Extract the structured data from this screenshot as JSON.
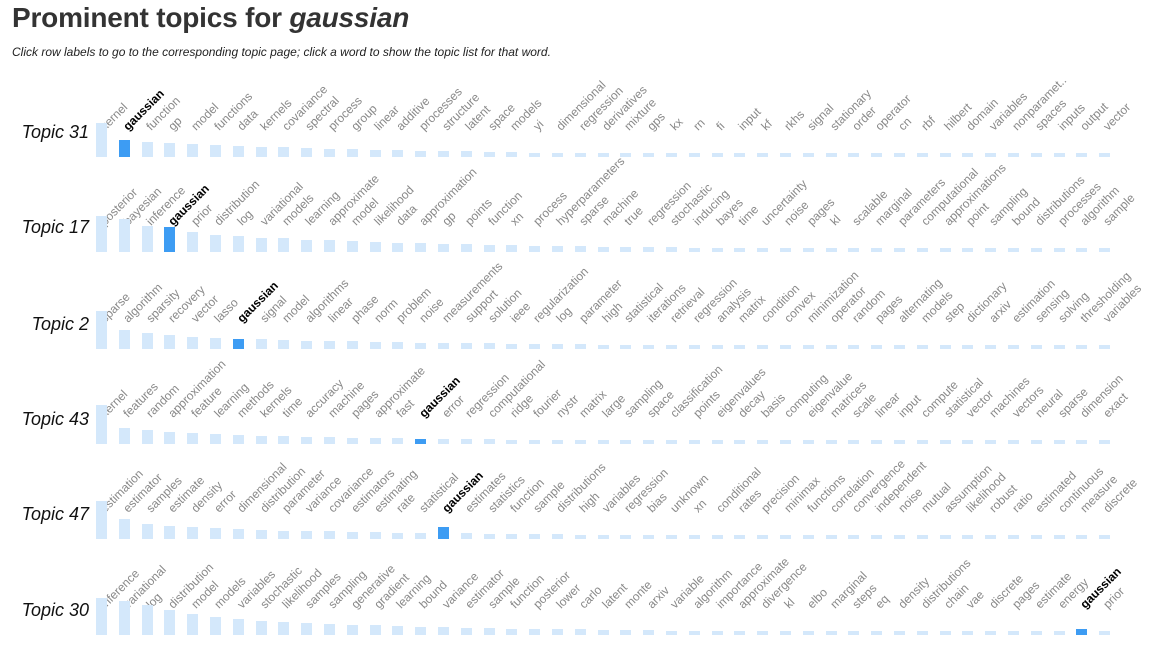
{
  "header": {
    "title_prefix": "Prominent topics for ",
    "query": "gaussian",
    "instructions": "Click row labels to go to the corresponding topic page; click a word to show the topic list for that word."
  },
  "colors": {
    "bar": "#d4e8fb",
    "highlight_bar": "#3d9cf3",
    "word": "#888888",
    "highlight_word": "#000000"
  },
  "highlight_word": "gaussian",
  "topics": [
    {
      "label": "Topic 31",
      "words": [
        "kernel",
        "gaussian",
        "function",
        "gp",
        "model",
        "functions",
        "data",
        "kernels",
        "covariance",
        "spectral",
        "process",
        "group",
        "linear",
        "additive",
        "processes",
        "structure",
        "latent",
        "space",
        "models",
        "yi",
        "dimensional",
        "regression",
        "derivatives",
        "mixture",
        "gps",
        "kx",
        "rn",
        "fi",
        "input",
        "kf",
        "rkhs",
        "signal",
        "stationary",
        "order",
        "operator",
        "cn",
        "rbf",
        "hilbert",
        "domain",
        "variables",
        "nonparamet..",
        "spaces",
        "inputs",
        "output",
        "vector"
      ],
      "levels": [
        0.85,
        0.42,
        0.38,
        0.35,
        0.33,
        0.3,
        0.28,
        0.26,
        0.24,
        0.22,
        0.2,
        0.19,
        0.18,
        0.17,
        0.16,
        0.15,
        0.14,
        0.13,
        0.12,
        0.11,
        0.11,
        0.1,
        0.1,
        0.09,
        0.09,
        0.08,
        0.08,
        0.08,
        0.07,
        0.07,
        0.07,
        0.07,
        0.06,
        0.06,
        0.06,
        0.06,
        0.06,
        0.06,
        0.05,
        0.05,
        0.05,
        0.05,
        0.05,
        0.05,
        0.05
      ]
    },
    {
      "label": "Topic 17",
      "words": [
        "posterior",
        "bayesian",
        "inference",
        "gaussian",
        "prior",
        "distribution",
        "log",
        "variational",
        "models",
        "learning",
        "approximate",
        "model",
        "likelihood",
        "data",
        "approximation",
        "gp",
        "points",
        "function",
        "xn",
        "process",
        "hyperparameters",
        "sparse",
        "machine",
        "true",
        "regression",
        "stochastic",
        "inducing",
        "bayes",
        "time",
        "uncertainty",
        "noise",
        "pages",
        "kl",
        "scalable",
        "marginal",
        "parameters",
        "computational",
        "approximations",
        "point",
        "sampling",
        "bound",
        "distributions",
        "processes",
        "algorithm",
        "sample"
      ],
      "levels": [
        0.9,
        0.82,
        0.65,
        0.62,
        0.5,
        0.42,
        0.4,
        0.36,
        0.34,
        0.31,
        0.29,
        0.27,
        0.25,
        0.23,
        0.22,
        0.2,
        0.19,
        0.18,
        0.17,
        0.16,
        0.15,
        0.14,
        0.13,
        0.13,
        0.12,
        0.12,
        0.11,
        0.11,
        0.1,
        0.1,
        0.09,
        0.09,
        0.09,
        0.08,
        0.08,
        0.08,
        0.08,
        0.07,
        0.07,
        0.07,
        0.07,
        0.06,
        0.06,
        0.06,
        0.06
      ]
    },
    {
      "label": "Topic 2",
      "words": [
        "sparse",
        "algorithm",
        "sparsity",
        "recovery",
        "vector",
        "lasso",
        "gaussian",
        "signal",
        "model",
        "algorithms",
        "linear",
        "phase",
        "norm",
        "problem",
        "noise",
        "measurements",
        "support",
        "solution",
        "ieee",
        "regularization",
        "log",
        "parameter",
        "high",
        "statistical",
        "iterations",
        "retrieval",
        "regression",
        "analysis",
        "matrix",
        "condition",
        "convex",
        "minimization",
        "operator",
        "random",
        "pages",
        "alternating",
        "models",
        "step",
        "dictionary",
        "arxiv",
        "estimation",
        "sensing",
        "solving",
        "thresholding",
        "variables"
      ],
      "levels": [
        0.95,
        0.48,
        0.4,
        0.34,
        0.3,
        0.28,
        0.26,
        0.25,
        0.23,
        0.21,
        0.2,
        0.19,
        0.18,
        0.17,
        0.16,
        0.15,
        0.14,
        0.14,
        0.13,
        0.13,
        0.12,
        0.12,
        0.11,
        0.11,
        0.1,
        0.1,
        0.1,
        0.09,
        0.09,
        0.09,
        0.08,
        0.08,
        0.08,
        0.08,
        0.07,
        0.07,
        0.07,
        0.07,
        0.07,
        0.06,
        0.06,
        0.06,
        0.06,
        0.06,
        0.06
      ]
    },
    {
      "label": "Topic 43",
      "words": [
        "kernel",
        "features",
        "random",
        "approximation",
        "feature",
        "learning",
        "methods",
        "kernels",
        "time",
        "accuracy",
        "machine",
        "pages",
        "approximate",
        "fast",
        "gaussian",
        "error",
        "regression",
        "computational",
        "ridge",
        "fourier",
        "nystr",
        "matrix",
        "large",
        "sampling",
        "space",
        "classification",
        "points",
        "eigenvalues",
        "decay",
        "basis",
        "computing",
        "eigenvalue",
        "matrices",
        "scale",
        "linear",
        "input",
        "compute",
        "statistical",
        "vector",
        "machines",
        "vectors",
        "neural",
        "sparse",
        "dimension",
        "exact"
      ],
      "levels": [
        0.98,
        0.4,
        0.34,
        0.3,
        0.27,
        0.25,
        0.23,
        0.21,
        0.19,
        0.18,
        0.17,
        0.16,
        0.15,
        0.14,
        0.13,
        0.13,
        0.12,
        0.12,
        0.11,
        0.11,
        0.1,
        0.1,
        0.1,
        0.09,
        0.09,
        0.09,
        0.08,
        0.08,
        0.08,
        0.08,
        0.07,
        0.07,
        0.07,
        0.07,
        0.07,
        0.06,
        0.06,
        0.06,
        0.06,
        0.06,
        0.06,
        0.06,
        0.05,
        0.05,
        0.05
      ]
    },
    {
      "label": "Topic 47",
      "words": [
        "estimation",
        "estimator",
        "samples",
        "estimate",
        "density",
        "error",
        "dimensional",
        "distribution",
        "parameter",
        "variance",
        "covariance",
        "estimators",
        "estimating",
        "rate",
        "statistical",
        "gaussian",
        "estimates",
        "statistics",
        "function",
        "sample",
        "distributions",
        "high",
        "variables",
        "regression",
        "bias",
        "unknown",
        "xn",
        "conditional",
        "rates",
        "precision",
        "minimax",
        "functions",
        "correlation",
        "convergence",
        "independent",
        "noise",
        "mutual",
        "assumption",
        "likelihood",
        "robust",
        "ratio",
        "estimated",
        "continuous",
        "measure",
        "discrete"
      ],
      "levels": [
        0.95,
        0.5,
        0.38,
        0.32,
        0.29,
        0.27,
        0.25,
        0.23,
        0.21,
        0.2,
        0.19,
        0.18,
        0.17,
        0.16,
        0.15,
        0.3,
        0.14,
        0.13,
        0.13,
        0.12,
        0.12,
        0.11,
        0.11,
        0.1,
        0.1,
        0.1,
        0.09,
        0.09,
        0.09,
        0.08,
        0.08,
        0.08,
        0.08,
        0.07,
        0.07,
        0.07,
        0.07,
        0.07,
        0.06,
        0.06,
        0.06,
        0.06,
        0.06,
        0.06,
        0.06
      ]
    },
    {
      "label": "Topic 30",
      "words": [
        "inference",
        "variational",
        "log",
        "distribution",
        "model",
        "models",
        "variables",
        "stochastic",
        "likelihood",
        "samples",
        "sampling",
        "generative",
        "gradient",
        "learning",
        "bound",
        "variance",
        "estimator",
        "sample",
        "function",
        "posterior",
        "lower",
        "carlo",
        "latent",
        "monte",
        "arxiv",
        "variable",
        "algorithm",
        "importance",
        "approximate",
        "divergence",
        "kl",
        "elbo",
        "marginal",
        "steps",
        "eq",
        "density",
        "distributions",
        "chain",
        "vae",
        "discrete",
        "pages",
        "estimate",
        "energy",
        "gaussian",
        "prior"
      ],
      "levels": [
        0.92,
        0.85,
        0.75,
        0.62,
        0.52,
        0.45,
        0.4,
        0.36,
        0.33,
        0.3,
        0.28,
        0.26,
        0.24,
        0.22,
        0.2,
        0.19,
        0.18,
        0.17,
        0.16,
        0.15,
        0.14,
        0.14,
        0.13,
        0.12,
        0.12,
        0.11,
        0.11,
        0.1,
        0.1,
        0.1,
        0.09,
        0.09,
        0.09,
        0.08,
        0.08,
        0.08,
        0.08,
        0.07,
        0.07,
        0.07,
        0.07,
        0.07,
        0.06,
        0.14,
        0.06
      ]
    }
  ]
}
